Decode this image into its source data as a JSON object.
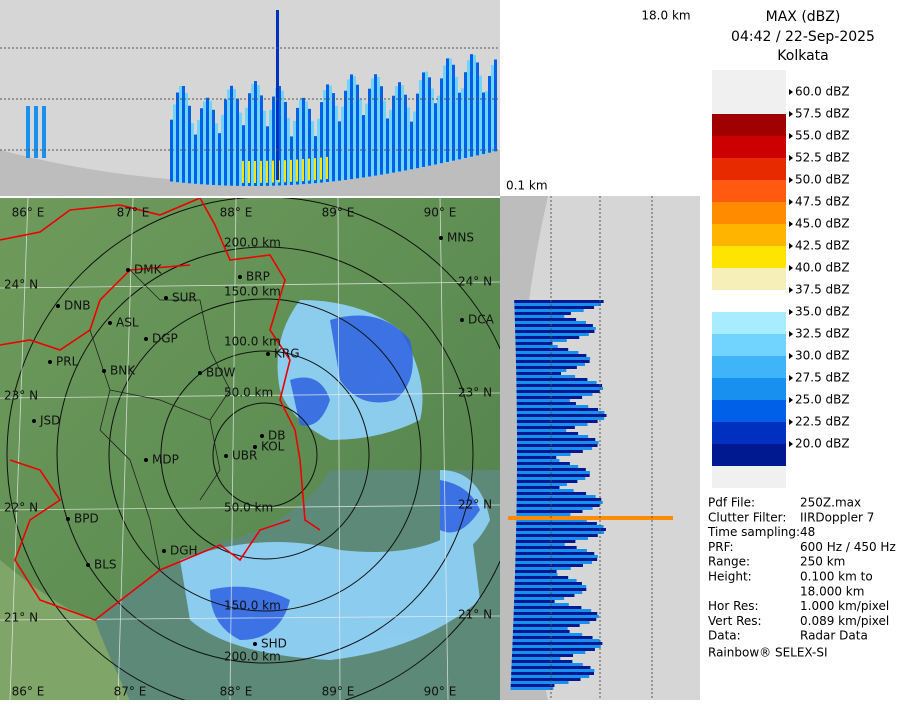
{
  "title": {
    "product": "MAX (dBZ)",
    "datetime": "04:42 / 22-Sep-2025",
    "station": "Kolkata"
  },
  "cross_section": {
    "top_height": "18.0 km",
    "bottom_height": "0.1 km"
  },
  "legend": [
    {
      "label": "60.0 dBZ"
    },
    {
      "label": "57.5 dBZ",
      "color": "#a00000"
    },
    {
      "label": "55.0 dBZ",
      "color": "#cc0000"
    },
    {
      "label": "52.5 dBZ",
      "color": "#e82a00"
    },
    {
      "label": "50.0 dBZ",
      "color": "#ff5a10"
    },
    {
      "label": "47.5 dBZ",
      "color": "#ff8c00"
    },
    {
      "label": "45.0 dBZ",
      "color": "#ffb400"
    },
    {
      "label": "42.5 dBZ",
      "color": "#ffe400"
    },
    {
      "label": "40.0 dBZ",
      "color": "#f6f0b8"
    },
    {
      "label": "37.5 dBZ",
      "color": "#ffffff"
    },
    {
      "label": "35.0 dBZ",
      "color": "#a8ecff"
    },
    {
      "label": "32.5 dBZ",
      "color": "#70d4ff"
    },
    {
      "label": "30.0 dBZ",
      "color": "#40b4f8"
    },
    {
      "label": "27.5 dBZ",
      "color": "#1890f0"
    },
    {
      "label": "25.0 dBZ",
      "color": "#0060e8"
    },
    {
      "label": "22.5 dBZ",
      "color": "#0030c0"
    },
    {
      "label": "20.0 dBZ",
      "color": "#001890"
    }
  ],
  "info": [
    {
      "key": "Pdf File:",
      "value": "250Z.max"
    },
    {
      "key": "Clutter Filter:",
      "value": "IIRDoppler 7"
    },
    {
      "key": "Time sampling:",
      "value": "48"
    },
    {
      "key": "PRF:",
      "value": "600 Hz / 450 Hz"
    },
    {
      "key": "Range:",
      "value": "250 km"
    },
    {
      "key": "Height:",
      "value": "0.100 km to",
      "value2": "18.000 km"
    },
    {
      "key": "Hor Res:",
      "value": "1.000 km/pixel"
    },
    {
      "key": "Vert Res:",
      "value": "0.089 km/pixel"
    },
    {
      "key": "Data:",
      "value": "Radar Data"
    }
  ],
  "footer": "Rainbow® SELEX-SI",
  "map": {
    "lon_labels": [
      "86° E",
      "87° E",
      "88° E",
      "89° E",
      "90° E"
    ],
    "lat_labels": [
      "24° N",
      "23° N",
      "22° N",
      "21° N"
    ],
    "ranges_north": [
      "200.0 km",
      "150.0 km",
      "100.0 km",
      "50.0 km"
    ],
    "ranges_south": [
      "50.0 km",
      "150.0 km",
      "200.0 km"
    ],
    "cities": [
      "MNS",
      "DMK",
      "BRP",
      "DNB",
      "ASL",
      "SUR",
      "DGP",
      "DCA",
      "KRG",
      "PRL",
      "BNK",
      "BDW",
      "JSD",
      "DB",
      "KOL",
      "MDP",
      "UBR",
      "BPD",
      "DGH",
      "BLS",
      "SHD"
    ]
  }
}
